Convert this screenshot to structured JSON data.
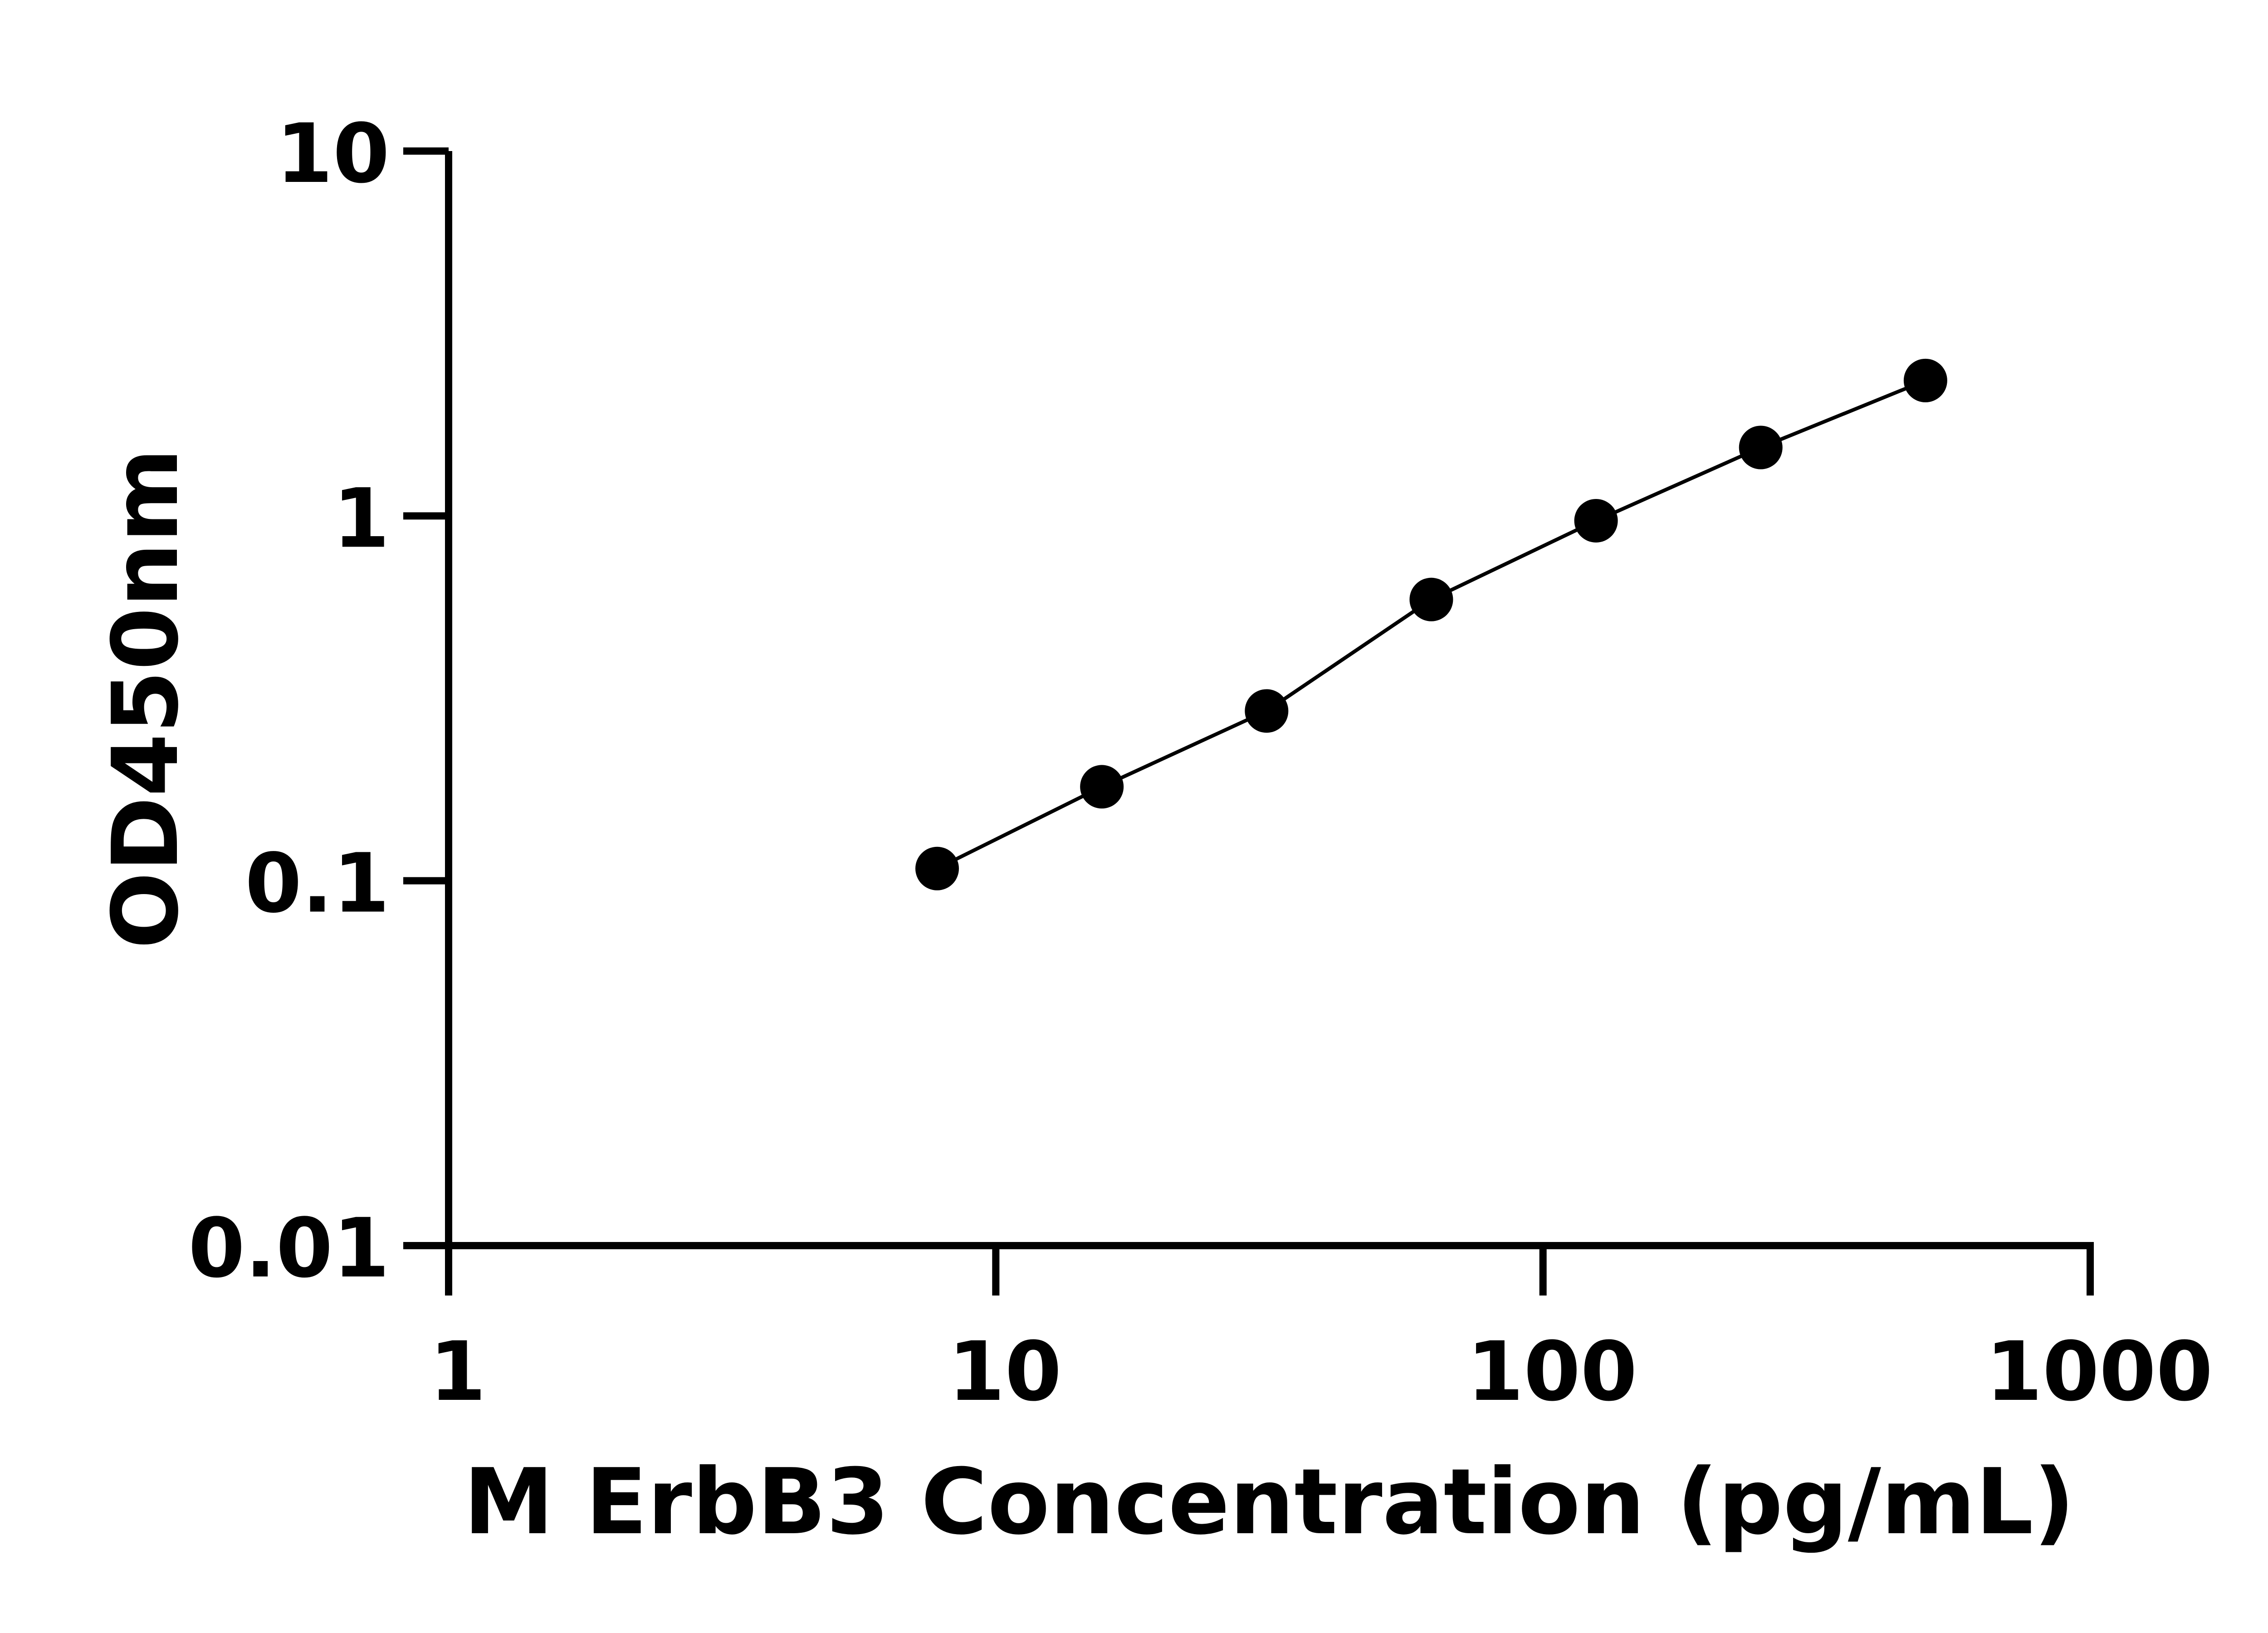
{
  "chart_data": {
    "type": "line",
    "title": "",
    "xlabel": "M ErbB3 Concentration (pg/mL)",
    "ylabel": "OD450nm",
    "xscale": "log",
    "yscale": "log",
    "xlim": [
      1,
      1000
    ],
    "ylim": [
      0.01,
      10
    ],
    "xticks": [
      "1",
      "10",
      "100",
      "1000"
    ],
    "yticks": [
      "0.01",
      "0.1",
      "1",
      "10"
    ],
    "grid": false,
    "series": [
      {
        "x": [
          7.8125,
          15.625,
          31.25,
          62.5,
          125,
          250,
          500
        ],
        "y": [
          0.108,
          0.181,
          0.292,
          0.59,
          0.97,
          1.54,
          2.35
        ],
        "marker": "filled-circle",
        "color": "#000000",
        "fit_line": true
      }
    ]
  }
}
